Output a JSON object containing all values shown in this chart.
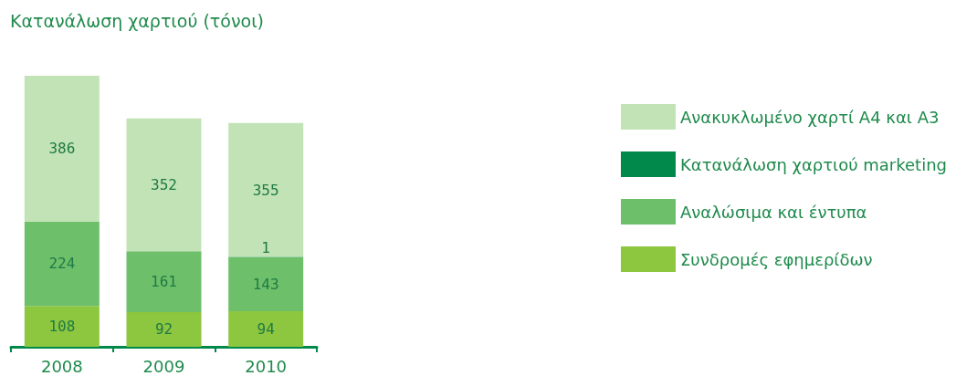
{
  "chart_data": {
    "type": "bar",
    "title": "Κατανάλωση χαρτιού (τόνοι)",
    "categories": [
      "2008",
      "2009",
      "2010"
    ],
    "stacked": true,
    "data_labels": true,
    "legend": "right",
    "series": [
      {
        "name": "Συνδρομές εφημερίδων",
        "color": "#8dc63f",
        "values": [
          108,
          92,
          94
        ]
      },
      {
        "name": "Αναλώσιμα και έντυπα",
        "color": "#6dbf6a",
        "values": [
          224,
          161,
          143
        ]
      },
      {
        "name": "Κατανάλωση χαρτιού marketing",
        "color": "#00894b",
        "values": [
          null,
          null,
          1
        ]
      },
      {
        "name": "Ανακυκλωμένο χαρτί A4 και A3",
        "color": "#c2e3b5",
        "values": [
          386,
          352,
          355
        ]
      }
    ]
  }
}
